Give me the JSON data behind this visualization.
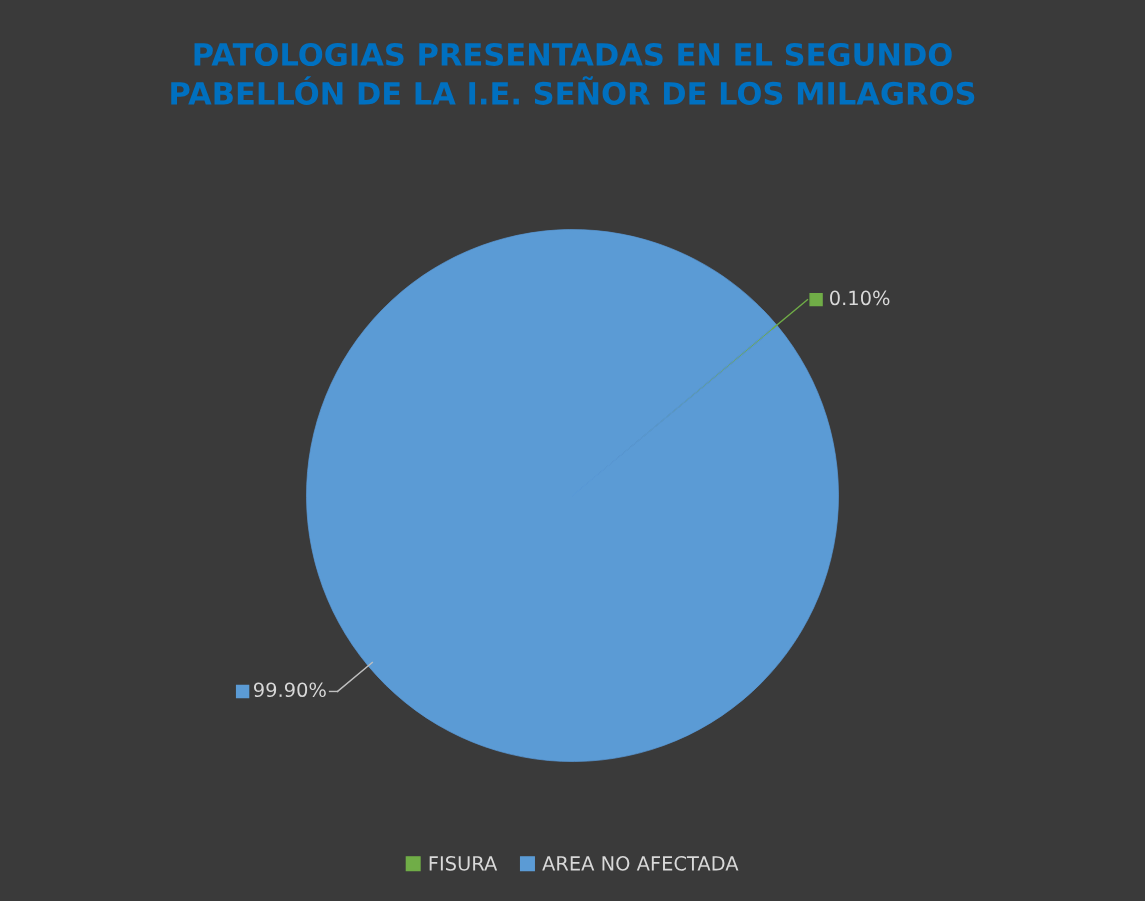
{
  "chart_data": {
    "type": "pie",
    "title": "PATOLOGIAS PRESENTADAS EN EL SEGUNDO\nPABELLÓN DE LA I.E. SEÑOR DE LOS MILAGROS",
    "categories": [
      "FISURA",
      "AREA NO AFECTADA"
    ],
    "values": [
      0.1,
      99.9
    ],
    "colors": [
      "#70ad47",
      "#5b9bd5"
    ],
    "value_labels": [
      "0.10%",
      "99.90%"
    ],
    "legend": "bottom"
  }
}
